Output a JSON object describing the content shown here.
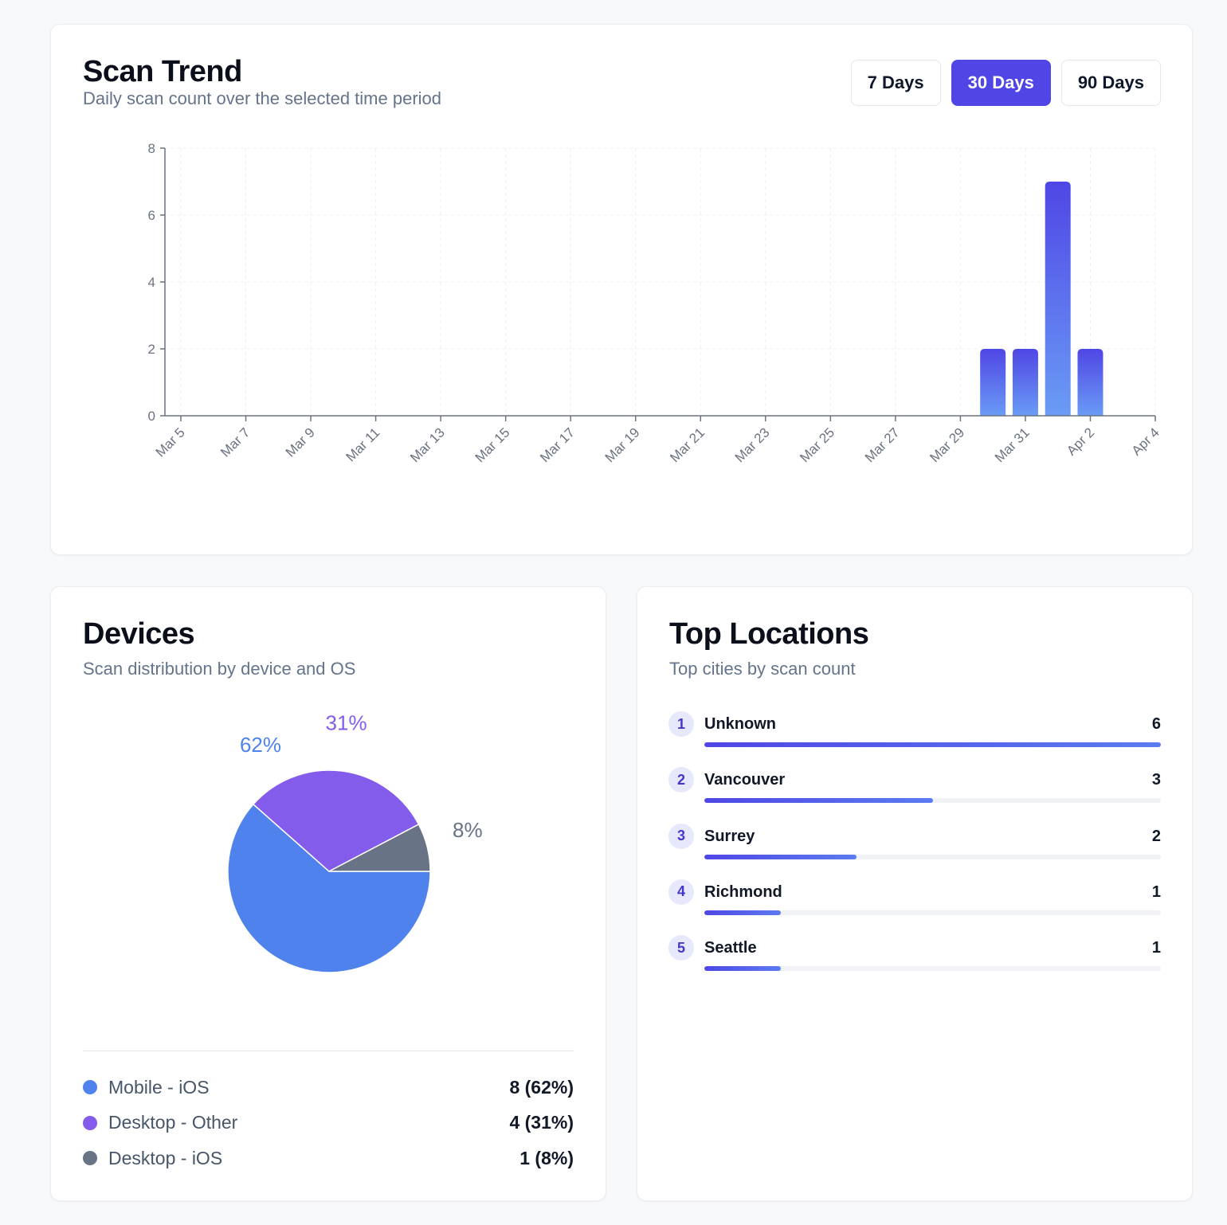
{
  "trend": {
    "title": "Scan Trend",
    "subtitle": "Daily scan count over the selected time period",
    "ranges": [
      "7 Days",
      "30 Days",
      "90 Days"
    ],
    "active_range": "30 Days"
  },
  "chart_data": {
    "type": "bar",
    "x_tick_labels": [
      "Mar 5",
      "Mar 7",
      "Mar 9",
      "Mar 11",
      "Mar 13",
      "Mar 15",
      "Mar 17",
      "Mar 19",
      "Mar 21",
      "Mar 23",
      "Mar 25",
      "Mar 27",
      "Mar 29",
      "Mar 31",
      "Apr 2",
      "Apr 4"
    ],
    "categories": [
      "Mar 5",
      "Mar 6",
      "Mar 7",
      "Mar 8",
      "Mar 9",
      "Mar 10",
      "Mar 11",
      "Mar 12",
      "Mar 13",
      "Mar 14",
      "Mar 15",
      "Mar 16",
      "Mar 17",
      "Mar 18",
      "Mar 19",
      "Mar 20",
      "Mar 21",
      "Mar 22",
      "Mar 23",
      "Mar 24",
      "Mar 25",
      "Mar 26",
      "Mar 27",
      "Mar 28",
      "Mar 29",
      "Mar 30",
      "Mar 31",
      "Apr 1",
      "Apr 2",
      "Apr 3",
      "Apr 4"
    ],
    "values": [
      0,
      0,
      0,
      0,
      0,
      0,
      0,
      0,
      0,
      0,
      0,
      0,
      0,
      0,
      0,
      0,
      0,
      0,
      0,
      0,
      0,
      0,
      0,
      0,
      0,
      2,
      2,
      7,
      2,
      0,
      0
    ],
    "y_ticks": [
      0,
      2,
      4,
      6,
      8
    ],
    "ylim": [
      0,
      8
    ],
    "grid": true,
    "bar_color_top": "#4f46e5",
    "bar_color_bottom": "#6a9cf5"
  },
  "devices": {
    "title": "Devices",
    "subtitle": "Scan distribution by device and OS",
    "chart_data": {
      "type": "pie",
      "slices": [
        {
          "label": "Mobile - iOS",
          "value": 8,
          "percent": "62%",
          "color": "#4f82ec",
          "display": "8 (62%)"
        },
        {
          "label": "Desktop - Other",
          "value": 4,
          "percent": "31%",
          "color": "#845cec",
          "display": "4 (31%)"
        },
        {
          "label": "Desktop - iOS",
          "value": 1,
          "percent": "8%",
          "color": "#687385",
          "display": "1 (8%)"
        }
      ]
    }
  },
  "locations": {
    "title": "Top Locations",
    "subtitle": "Top cities by scan count",
    "items": [
      {
        "rank": "1",
        "name": "Unknown",
        "count": "6",
        "fraction": 1.0
      },
      {
        "rank": "2",
        "name": "Vancouver",
        "count": "3",
        "fraction": 0.5
      },
      {
        "rank": "3",
        "name": "Surrey",
        "count": "2",
        "fraction": 0.3333
      },
      {
        "rank": "4",
        "name": "Richmond",
        "count": "1",
        "fraction": 0.1667
      },
      {
        "rank": "5",
        "name": "Seattle",
        "count": "1",
        "fraction": 0.1667
      }
    ]
  }
}
